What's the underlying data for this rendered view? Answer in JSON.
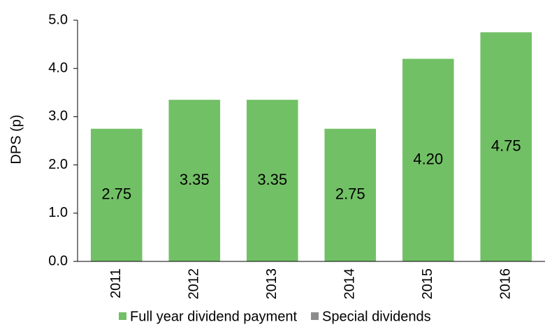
{
  "chart_data": {
    "type": "bar",
    "stacked": true,
    "y_label": "DPS (p)",
    "categories": [
      "2011",
      "2012",
      "2013",
      "2014",
      "2015",
      "2016"
    ],
    "series": [
      {
        "name": "Full year dividend payment",
        "color": "#72c066",
        "values": [
          2.75,
          3.35,
          3.35,
          2.75,
          4.2,
          4.75
        ],
        "value_labels": [
          "2.75",
          "3.35",
          "3.35",
          "2.75",
          "4.20",
          "4.75"
        ]
      },
      {
        "name": "Special dividends",
        "color": "#8c8c8c",
        "values": [
          0,
          0,
          0,
          0,
          0,
          0
        ]
      }
    ],
    "ylim": [
      0,
      5
    ],
    "yticks": [
      {
        "value": 0,
        "label": "0.0"
      },
      {
        "value": 1,
        "label": "1.0"
      },
      {
        "value": 2,
        "label": "2.0"
      },
      {
        "value": 3,
        "label": "3.0"
      },
      {
        "value": 4,
        "label": "4.0"
      },
      {
        "value": 5,
        "label": "5.0"
      }
    ],
    "grid": false,
    "legend": "bottom"
  }
}
